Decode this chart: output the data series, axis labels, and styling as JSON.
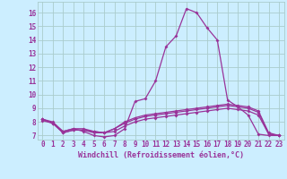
{
  "xlabel": "Windchill (Refroidissement éolien,°C)",
  "bg_color": "#cceeff",
  "grid_color": "#aacccc",
  "line_color": "#993399",
  "x_ticks": [
    0,
    1,
    2,
    3,
    4,
    5,
    6,
    7,
    8,
    9,
    10,
    11,
    12,
    13,
    14,
    15,
    16,
    17,
    18,
    19,
    20,
    21,
    22,
    23
  ],
  "y_ticks": [
    7,
    8,
    9,
    10,
    11,
    12,
    13,
    14,
    15,
    16
  ],
  "ylim": [
    6.7,
    16.8
  ],
  "xlim": [
    -0.5,
    23.5
  ],
  "series1": [
    8.2,
    8.0,
    7.3,
    7.5,
    7.3,
    7.0,
    6.9,
    7.0,
    7.5,
    9.5,
    9.7,
    11.0,
    13.5,
    14.3,
    16.3,
    16.0,
    14.9,
    14.0,
    9.6,
    9.1,
    8.5,
    7.1,
    7.0,
    7.0
  ],
  "series2": [
    8.2,
    7.9,
    7.2,
    7.4,
    7.4,
    7.3,
    7.2,
    7.5,
    8.0,
    8.3,
    8.5,
    8.6,
    8.7,
    8.8,
    8.9,
    9.0,
    9.1,
    9.2,
    9.3,
    9.2,
    9.1,
    8.8,
    7.2,
    7.0
  ],
  "series3": [
    8.1,
    7.9,
    7.2,
    7.4,
    7.4,
    7.2,
    7.2,
    7.3,
    7.7,
    8.0,
    8.2,
    8.3,
    8.4,
    8.5,
    8.6,
    8.7,
    8.8,
    8.9,
    9.0,
    8.9,
    8.8,
    8.5,
    7.1,
    7.0
  ],
  "series4": [
    8.2,
    7.9,
    7.3,
    7.5,
    7.5,
    7.3,
    7.2,
    7.5,
    7.9,
    8.2,
    8.4,
    8.5,
    8.6,
    8.7,
    8.8,
    8.9,
    9.0,
    9.1,
    9.2,
    9.1,
    9.0,
    8.7,
    7.1,
    7.0
  ],
  "tick_fontsize": 5.5,
  "xlabel_fontsize": 6.0,
  "marker_size": 2.0,
  "line_width": 0.9
}
